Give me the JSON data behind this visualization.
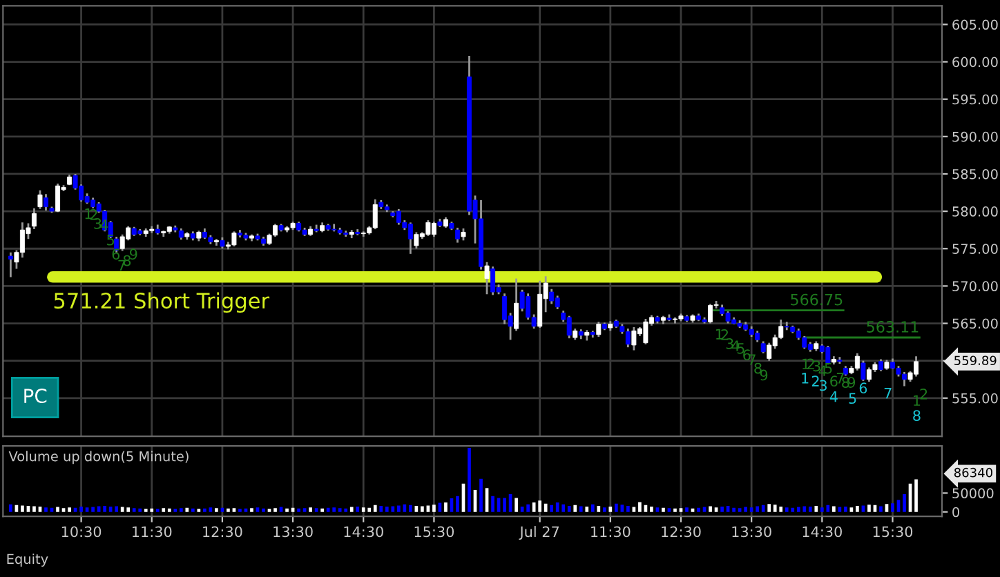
{
  "chart_data": [
    {
      "type": "candlestick",
      "categories": [
        null,
        null,
        null,
        null,
        null,
        null,
        null,
        null,
        null,
        null,
        null,
        null,
        null,
        null,
        null,
        null,
        null,
        null,
        null,
        null,
        null,
        null,
        null,
        null,
        null,
        null,
        null,
        null,
        null,
        null,
        null,
        null,
        null,
        null,
        null,
        null,
        null,
        null,
        null,
        null,
        null,
        null,
        null,
        null,
        null,
        null,
        null,
        null,
        null,
        null,
        null,
        null,
        null,
        null,
        null,
        null,
        null,
        null,
        null,
        null,
        null,
        null,
        null,
        null,
        null,
        null,
        null,
        null,
        null,
        null,
        null,
        null,
        null,
        null,
        null,
        null,
        null,
        null,
        null,
        null,
        null,
        null,
        null,
        null,
        null,
        null,
        null,
        null,
        null,
        null,
        null,
        null,
        null,
        null,
        null,
        null,
        null,
        null,
        null,
        null,
        null,
        null,
        null,
        null,
        null,
        null,
        null,
        null,
        null,
        null,
        null,
        null,
        null,
        null,
        null,
        null,
        null,
        null,
        null,
        null,
        null,
        null,
        null,
        null,
        null,
        null,
        null,
        null,
        null,
        null,
        null,
        null,
        null,
        null,
        null,
        null,
        null,
        null,
        null,
        null,
        null,
        null,
        null,
        null,
        null,
        null,
        null,
        null,
        null,
        null,
        null,
        null,
        null,
        null,
        null
      ],
      "ohlc": [
        [
          574.0,
          574.5,
          571.2,
          573.6
        ],
        [
          573.2,
          574.8,
          572.3,
          574.5
        ],
        [
          574.5,
          578.5,
          573.8,
          577.5
        ],
        [
          577.0,
          578.4,
          576.3,
          577.8
        ],
        [
          578.0,
          580.4,
          577.6,
          579.7
        ],
        [
          580.6,
          582.8,
          580.3,
          582.2
        ],
        [
          581.8,
          582.3,
          580.1,
          580.6
        ],
        [
          580.4,
          580.6,
          579.8,
          580.0
        ],
        [
          580.0,
          583.7,
          579.9,
          583.4
        ],
        [
          582.9,
          583.5,
          582.7,
          583.2
        ],
        [
          583.6,
          584.9,
          583.5,
          584.6
        ],
        [
          584.8,
          585.0,
          582.9,
          583.1
        ],
        [
          583.4,
          583.6,
          581.3,
          581.5
        ],
        [
          582.0,
          582.4,
          581.0,
          581.2
        ],
        [
          581.5,
          581.8,
          580.4,
          580.6
        ],
        [
          581.0,
          581.2,
          579.8,
          580.0
        ],
        [
          580.0,
          580.2,
          577.3,
          577.5
        ],
        [
          578.5,
          578.7,
          576.4,
          576.6
        ],
        [
          576.3,
          576.6,
          574.5,
          574.8
        ],
        [
          575.0,
          576.9,
          574.7,
          576.6
        ],
        [
          576.3,
          578.0,
          576.1,
          577.8
        ],
        [
          577.7,
          577.9,
          576.7,
          576.9
        ],
        [
          577.4,
          577.6,
          576.8,
          577.0
        ],
        [
          577.0,
          577.7,
          576.6,
          577.4
        ],
        [
          577.4,
          578.0,
          577.1,
          577.6
        ],
        [
          577.6,
          578.2,
          576.9,
          577.1
        ],
        [
          577.1,
          577.4,
          576.6,
          577.3
        ],
        [
          577.3,
          578.0,
          577.0,
          577.9
        ],
        [
          577.8,
          578.1,
          577.2,
          577.5
        ],
        [
          577.4,
          577.7,
          576.2,
          576.5
        ],
        [
          576.6,
          577.2,
          576.2,
          577.0
        ],
        [
          577.0,
          577.3,
          576.1,
          576.4
        ],
        [
          576.4,
          577.4,
          576.0,
          577.2
        ],
        [
          577.2,
          577.7,
          576.3,
          576.5
        ],
        [
          576.5,
          576.8,
          575.6,
          575.9
        ],
        [
          575.9,
          576.3,
          575.4,
          576.1
        ],
        [
          576.1,
          576.5,
          575.0,
          575.3
        ],
        [
          575.3,
          575.9,
          574.9,
          575.5
        ],
        [
          575.5,
          577.3,
          575.3,
          577.1
        ],
        [
          577.1,
          577.5,
          576.5,
          576.8
        ],
        [
          576.8,
          577.1,
          576.1,
          576.4
        ],
        [
          576.4,
          576.9,
          576.0,
          576.7
        ],
        [
          576.7,
          577.0,
          576.1,
          576.3
        ],
        [
          576.3,
          576.6,
          575.4,
          575.7
        ],
        [
          575.7,
          577.0,
          575.5,
          576.8
        ],
        [
          576.8,
          578.3,
          576.6,
          578.1
        ],
        [
          578.1,
          578.3,
          577.3,
          577.5
        ],
        [
          577.5,
          578.0,
          577.2,
          577.8
        ],
        [
          577.8,
          578.6,
          577.5,
          578.4
        ],
        [
          578.4,
          578.6,
          577.3,
          577.5
        ],
        [
          577.5,
          577.8,
          576.7,
          576.9
        ],
        [
          576.9,
          578.0,
          576.7,
          577.6
        ],
        [
          577.6,
          578.2,
          577.2,
          577.4
        ],
        [
          577.4,
          578.5,
          577.2,
          578.1
        ],
        [
          578.1,
          578.3,
          577.4,
          577.6
        ],
        [
          577.6,
          578.3,
          577.3,
          577.5
        ],
        [
          577.5,
          577.8,
          576.9,
          577.1
        ],
        [
          577.1,
          577.4,
          576.6,
          576.9
        ],
        [
          576.9,
          577.5,
          576.4,
          577.2
        ],
        [
          577.2,
          577.6,
          576.8,
          577.0
        ],
        [
          577.0,
          577.3,
          576.6,
          577.1
        ],
        [
          577.1,
          578.0,
          576.9,
          577.8
        ],
        [
          577.8,
          581.6,
          577.6,
          580.9
        ],
        [
          581.2,
          581.5,
          580.3,
          580.6
        ],
        [
          580.6,
          580.9,
          579.9,
          580.2
        ],
        [
          579.8,
          580.0,
          579.2,
          579.4
        ],
        [
          580.0,
          580.3,
          578.2,
          578.5
        ],
        [
          578.5,
          578.8,
          577.5,
          577.8
        ],
        [
          578.3,
          578.5,
          574.3,
          576.3
        ],
        [
          575.4,
          577.2,
          575.0,
          576.9
        ],
        [
          576.6,
          577.2,
          576.3,
          577.0
        ],
        [
          576.9,
          578.8,
          576.7,
          578.5
        ],
        [
          576.9,
          578.6,
          576.6,
          578.4
        ],
        [
          578.6,
          579.0,
          577.9,
          578.1
        ],
        [
          578.0,
          579.2,
          577.8,
          578.9
        ],
        [
          578.4,
          578.6,
          577.5,
          577.7
        ],
        [
          577.5,
          577.8,
          575.8,
          576.3
        ],
        [
          576.6,
          577.7,
          576.1,
          577.2
        ],
        [
          598.0,
          600.8,
          579.5,
          580.0
        ],
        [
          581.5,
          582.1,
          575.7,
          579.0
        ],
        [
          579.0,
          581.5,
          572.2,
          572.6
        ],
        [
          571.0,
          573.2,
          568.9,
          572.7
        ],
        [
          572.3,
          572.6,
          568.8,
          569.2
        ],
        [
          569.8,
          570.2,
          568.9,
          569.2
        ],
        [
          568.6,
          569.0,
          564.9,
          565.5
        ],
        [
          566.0,
          566.4,
          562.8,
          564.6
        ],
        [
          564.3,
          571.0,
          564.0,
          567.7
        ],
        [
          569.2,
          569.5,
          566.6,
          567.0
        ],
        [
          568.6,
          569.0,
          565.5,
          565.8
        ],
        [
          565.8,
          566.2,
          564.3,
          564.6
        ],
        [
          564.6,
          570.7,
          564.4,
          568.9
        ],
        [
          568.3,
          571.3,
          566.5,
          570.4
        ],
        [
          569.2,
          569.6,
          567.6,
          568.0
        ],
        [
          568.4,
          568.7,
          566.9,
          567.2
        ],
        [
          566.4,
          566.7,
          565.2,
          565.5
        ],
        [
          565.8,
          566.0,
          563.0,
          563.4
        ],
        [
          563.1,
          564.3,
          562.8,
          564.0
        ],
        [
          563.9,
          564.2,
          562.9,
          563.4
        ],
        [
          563.4,
          564.1,
          562.7,
          563.8
        ],
        [
          563.8,
          564.0,
          563.1,
          563.5
        ],
        [
          563.5,
          565.2,
          563.2,
          564.9
        ],
        [
          564.9,
          565.1,
          564.1,
          564.3
        ],
        [
          564.4,
          565.3,
          564.0,
          564.9
        ],
        [
          565.3,
          565.5,
          564.4,
          564.6
        ],
        [
          564.6,
          564.9,
          563.6,
          563.9
        ],
        [
          563.9,
          564.3,
          561.8,
          562.2
        ],
        [
          562.1,
          564.5,
          561.4,
          564.0
        ],
        [
          563.6,
          564.5,
          563.3,
          564.3
        ],
        [
          562.4,
          565.6,
          562.2,
          565.2
        ],
        [
          565.0,
          566.1,
          564.7,
          565.8
        ],
        [
          565.8,
          566.0,
          565.0,
          565.3
        ],
        [
          565.4,
          566.0,
          564.9,
          565.8
        ],
        [
          565.7,
          566.2,
          565.3,
          565.5
        ],
        [
          565.5,
          565.8,
          565.0,
          565.6
        ],
        [
          565.6,
          566.3,
          565.3,
          566.0
        ],
        [
          565.9,
          566.1,
          565.2,
          565.4
        ],
        [
          565.4,
          566.2,
          565.1,
          566.0
        ],
        [
          566.0,
          566.3,
          565.3,
          565.5
        ],
        [
          565.5,
          565.8,
          565.0,
          565.2
        ],
        [
          565.2,
          567.6,
          565.0,
          567.4
        ],
        [
          567.4,
          568.0,
          567.0,
          567.4
        ],
        [
          567.1,
          567.5,
          566.0,
          566.3
        ],
        [
          566.4,
          566.6,
          565.0,
          565.3
        ],
        [
          565.5,
          565.8,
          564.9,
          565.0
        ],
        [
          565.0,
          565.4,
          564.4,
          564.6
        ],
        [
          564.8,
          565.2,
          564.0,
          564.2
        ],
        [
          564.2,
          564.6,
          563.2,
          563.5
        ],
        [
          563.7,
          564.0,
          562.5,
          562.8
        ],
        [
          562.3,
          562.6,
          561.0,
          561.2
        ],
        [
          560.3,
          562.4,
          560.0,
          562.1
        ],
        [
          562.0,
          563.5,
          561.6,
          563.1
        ],
        [
          563.1,
          565.5,
          562.9,
          564.6
        ],
        [
          564.6,
          565.2,
          564.1,
          564.5
        ],
        [
          564.5,
          564.7,
          563.7,
          563.9
        ],
        [
          564.0,
          564.3,
          562.8,
          563.1
        ],
        [
          563.1,
          563.3,
          561.6,
          561.8
        ],
        [
          562.2,
          562.5,
          561.2,
          561.5
        ],
        [
          561.6,
          562.6,
          561.3,
          562.3
        ],
        [
          562.0,
          562.2,
          561.0,
          561.2
        ],
        [
          561.8,
          562.0,
          559.5,
          559.7
        ],
        [
          559.8,
          560.6,
          559.5,
          560.2
        ],
        [
          560.1,
          560.5,
          559.6,
          559.9
        ],
        [
          559.0,
          559.3,
          558.0,
          558.2
        ],
        [
          558.4,
          559.3,
          558.2,
          559.0
        ],
        [
          559.0,
          561.0,
          558.7,
          560.6
        ],
        [
          559.7,
          560.0,
          557.3,
          557.5
        ],
        [
          557.5,
          559.1,
          557.2,
          558.8
        ],
        [
          558.8,
          559.8,
          558.5,
          559.5
        ],
        [
          559.9,
          560.2,
          558.6,
          558.8
        ],
        [
          559.0,
          560.1,
          558.8,
          559.8
        ],
        [
          559.8,
          560.3,
          558.9,
          559.0
        ],
        [
          559.0,
          559.3,
          557.9,
          558.2
        ],
        [
          558.2,
          558.5,
          556.6,
          557.5
        ],
        [
          557.5,
          558.6,
          557.2,
          558.4
        ],
        [
          558.2,
          560.6,
          557.9,
          559.89
        ]
      ],
      "colors": [
        "#0000ff",
        "#ffffff",
        "#ffffff",
        "#ffffff",
        "#ffffff",
        "#ffffff",
        "#0000ff",
        "#0000ff",
        "#ffffff",
        "#ffffff",
        "#ffffff",
        "#0000ff",
        "#0000ff",
        "#0000ff",
        "#0000ff",
        "#0000ff",
        "#0000ff",
        "#0000ff",
        "#0000ff",
        "#ffffff",
        "#ffffff",
        "#0000ff",
        "#0000ff",
        "#ffffff",
        "#ffffff",
        "#0000ff",
        "#ffffff",
        "#ffffff",
        "#0000ff",
        "#0000ff",
        "#ffffff",
        "#0000ff",
        "#ffffff",
        "#0000ff",
        "#0000ff",
        "#ffffff",
        "#0000ff",
        "#ffffff",
        "#ffffff",
        "#0000ff",
        "#0000ff",
        "#ffffff",
        "#0000ff",
        "#0000ff",
        "#ffffff",
        "#ffffff",
        "#0000ff",
        "#ffffff",
        "#ffffff",
        "#0000ff",
        "#0000ff",
        "#ffffff",
        "#0000ff",
        "#ffffff",
        "#0000ff",
        "#0000ff",
        "#0000ff",
        "#0000ff",
        "#ffffff",
        "#0000ff",
        "#ffffff",
        "#ffffff",
        "#ffffff",
        "#0000ff",
        "#0000ff",
        "#0000ff",
        "#0000ff",
        "#0000ff",
        "#0000ff",
        "#ffffff",
        "#ffffff",
        "#ffffff",
        "#ffffff",
        "#0000ff",
        "#ffffff",
        "#0000ff",
        "#0000ff",
        "#ffffff",
        "#0000ff",
        "#0000ff",
        "#0000ff",
        "#ffffff",
        "#0000ff",
        "#0000ff",
        "#0000ff",
        "#0000ff",
        "#ffffff",
        "#0000ff",
        "#0000ff",
        "#0000ff",
        "#ffffff",
        "#ffffff",
        "#0000ff",
        "#0000ff",
        "#0000ff",
        "#0000ff",
        "#ffffff",
        "#0000ff",
        "#ffffff",
        "#0000ff",
        "#ffffff",
        "#0000ff",
        "#ffffff",
        "#0000ff",
        "#0000ff",
        "#0000ff",
        "#ffffff",
        "#ffffff",
        "#ffffff",
        "#ffffff",
        "#0000ff",
        "#ffffff",
        "#0000ff",
        "#ffffff",
        "#ffffff",
        "#0000ff",
        "#ffffff",
        "#0000ff",
        "#0000ff",
        "#ffffff",
        "#ffffff",
        "#0000ff",
        "#0000ff",
        "#0000ff",
        "#0000ff",
        "#0000ff",
        "#0000ff",
        "#0000ff",
        "#0000ff",
        "#ffffff",
        "#ffffff",
        "#ffffff",
        "#0000ff",
        "#0000ff",
        "#0000ff",
        "#0000ff",
        "#0000ff",
        "#ffffff",
        "#0000ff",
        "#0000ff",
        "#ffffff",
        "#0000ff",
        "#0000ff",
        "#ffffff",
        "#ffffff",
        "#0000ff",
        "#ffffff",
        "#ffffff",
        "#0000ff",
        "#ffffff",
        "#0000ff",
        "#0000ff",
        "#0000ff",
        "#ffffff",
        "#ffffff"
      ],
      "ylim": [
        549.9,
        607.5
      ],
      "yticks": [
        {
          "value": 555,
          "label": "555.00"
        },
        {
          "value": 560,
          "label": null
        },
        {
          "value": 565,
          "label": "565.00"
        },
        {
          "value": 570,
          "label": "570.00"
        },
        {
          "value": 575,
          "label": "575.00"
        },
        {
          "value": 580,
          "label": "580.00"
        },
        {
          "value": 585,
          "label": "585.00"
        },
        {
          "value": 590,
          "label": "590.00"
        },
        {
          "value": 595,
          "label": "595.00"
        },
        {
          "value": 600,
          "label": "600.00"
        },
        {
          "value": 605,
          "label": "605.00"
        }
      ],
      "tick_labels": "y",
      "grid": true,
      "ref_lines": [
        {
          "axis": "y",
          "value": 571.21,
          "label": "571.21 Short Trigger",
          "color": "#d4f01e"
        },
        {
          "axis": "y",
          "value": 566.75,
          "label": "566.75",
          "color": "#1e7a1e"
        },
        {
          "axis": "y",
          "value": 563.11,
          "label": "563.11",
          "color": "#1e7a1e"
        }
      ],
      "annotations": [
        "PC",
        "1",
        "2",
        "3",
        "4",
        "5",
        "6",
        "7",
        "8",
        "9",
        "1",
        "2",
        "3",
        "4",
        "5",
        "6",
        "7",
        "8",
        "9",
        "1",
        "2",
        "3",
        "4",
        "5",
        "6",
        "7",
        "8",
        "9",
        "1",
        "2",
        "3",
        "4",
        "5",
        "6",
        "7",
        "8",
        "1",
        "2",
        "559.89"
      ]
    },
    {
      "type": "bar",
      "categories": [
        null,
        null,
        null,
        null,
        null,
        null,
        null,
        null,
        null,
        null,
        null,
        null,
        "10:30",
        null,
        null,
        null,
        null,
        null,
        null,
        null,
        null,
        null,
        null,
        null,
        "11:30",
        null,
        null,
        null,
        null,
        null,
        null,
        null,
        null,
        null,
        null,
        null,
        "12:30",
        null,
        null,
        null,
        null,
        null,
        null,
        null,
        null,
        null,
        null,
        null,
        "13:30",
        null,
        null,
        null,
        null,
        null,
        null,
        null,
        null,
        null,
        null,
        null,
        "14:30",
        null,
        null,
        null,
        null,
        null,
        null,
        null,
        null,
        null,
        null,
        null,
        "15:30",
        null,
        null,
        null,
        null,
        null,
        null,
        null,
        null,
        null,
        null,
        null,
        null,
        null,
        null,
        null,
        null,
        null,
        "Jul 27",
        null,
        null,
        null,
        null,
        null,
        null,
        null,
        null,
        null,
        null,
        null,
        "11:30",
        null,
        null,
        null,
        null,
        null,
        null,
        null,
        null,
        null,
        null,
        null,
        "12:30",
        null,
        null,
        null,
        null,
        null,
        null,
        null,
        null,
        null,
        null,
        null,
        "13:30",
        null,
        null,
        null,
        null,
        null,
        null,
        null,
        null,
        null,
        null,
        null,
        "14:30",
        null,
        null,
        null,
        null,
        null,
        null,
        null,
        null,
        null,
        null,
        null,
        "15:30",
        null,
        null,
        null,
        null
      ],
      "values": [
        20000,
        18000,
        17000,
        16000,
        15000,
        14000,
        12000,
        11000,
        13000,
        10000,
        12000,
        11000,
        14000,
        12000,
        13000,
        15000,
        16000,
        14000,
        15000,
        13000,
        12000,
        10000,
        9000,
        8000,
        9000,
        8000,
        10000,
        9000,
        8000,
        10000,
        11000,
        9000,
        8000,
        9000,
        12000,
        10000,
        11000,
        9000,
        10000,
        8000,
        9000,
        10000,
        12000,
        9000,
        8000,
        10000,
        13000,
        9000,
        11000,
        9000,
        10000,
        12000,
        10000,
        9000,
        11000,
        12000,
        10000,
        9000,
        13000,
        14000,
        12000,
        11000,
        18000,
        16000,
        14000,
        15000,
        17000,
        20000,
        18000,
        16000,
        15000,
        17000,
        19000,
        24000,
        25000,
        36000,
        42000,
        75000,
        170000,
        58000,
        88000,
        63000,
        42000,
        37000,
        37000,
        47000,
        37000,
        14000,
        20000,
        25000,
        30000,
        22000,
        18000,
        25000,
        20000,
        16000,
        18000,
        15000,
        14000,
        20000,
        16000,
        12000,
        14000,
        22000,
        19000,
        16000,
        13000,
        26000,
        18000,
        14000,
        12000,
        11000,
        10000,
        9000,
        10000,
        12000,
        9000,
        11000,
        13000,
        15000,
        12000,
        14000,
        16000,
        11000,
        10000,
        13000,
        12000,
        15000,
        18000,
        21000,
        19000,
        14000,
        12000,
        11000,
        13000,
        15000,
        14000,
        16000,
        12000,
        18000,
        15000,
        13000,
        14000,
        12000,
        16000,
        17000,
        19000,
        18000,
        15000,
        21000,
        23000,
        32000,
        47000,
        75000,
        86340
      ],
      "colors": [
        "#0000ff",
        "#ffffff",
        "#ffffff",
        "#ffffff",
        "#ffffff",
        "#ffffff",
        "#0000ff",
        "#0000ff",
        "#ffffff",
        "#ffffff",
        "#ffffff",
        "#0000ff",
        "#0000ff",
        "#0000ff",
        "#0000ff",
        "#0000ff",
        "#0000ff",
        "#0000ff",
        "#0000ff",
        "#ffffff",
        "#ffffff",
        "#0000ff",
        "#0000ff",
        "#ffffff",
        "#ffffff",
        "#0000ff",
        "#ffffff",
        "#ffffff",
        "#0000ff",
        "#0000ff",
        "#ffffff",
        "#0000ff",
        "#ffffff",
        "#0000ff",
        "#0000ff",
        "#ffffff",
        "#0000ff",
        "#ffffff",
        "#ffffff",
        "#0000ff",
        "#0000ff",
        "#ffffff",
        "#0000ff",
        "#0000ff",
        "#ffffff",
        "#ffffff",
        "#0000ff",
        "#ffffff",
        "#ffffff",
        "#0000ff",
        "#0000ff",
        "#ffffff",
        "#0000ff",
        "#ffffff",
        "#0000ff",
        "#0000ff",
        "#0000ff",
        "#0000ff",
        "#ffffff",
        "#0000ff",
        "#ffffff",
        "#ffffff",
        "#ffffff",
        "#0000ff",
        "#0000ff",
        "#0000ff",
        "#0000ff",
        "#0000ff",
        "#0000ff",
        "#ffffff",
        "#ffffff",
        "#ffffff",
        "#ffffff",
        "#0000ff",
        "#ffffff",
        "#0000ff",
        "#0000ff",
        "#ffffff",
        "#0000ff",
        "#ffffff",
        "#0000ff",
        "#ffffff",
        "#0000ff",
        "#0000ff",
        "#0000ff",
        "#0000ff",
        "#ffffff",
        "#0000ff",
        "#0000ff",
        "#ffffff",
        "#ffffff",
        "#ffffff",
        "#0000ff",
        "#0000ff",
        "#0000ff",
        "#0000ff",
        "#ffffff",
        "#0000ff",
        "#ffffff",
        "#0000ff",
        "#ffffff",
        "#0000ff",
        "#ffffff",
        "#0000ff",
        "#0000ff",
        "#0000ff",
        "#ffffff",
        "#ffffff",
        "#ffffff",
        "#ffffff",
        "#0000ff",
        "#ffffff",
        "#0000ff",
        "#ffffff",
        "#ffffff",
        "#0000ff",
        "#ffffff",
        "#0000ff",
        "#0000ff",
        "#ffffff",
        "#ffffff",
        "#0000ff",
        "#0000ff",
        "#0000ff",
        "#0000ff",
        "#0000ff",
        "#0000ff",
        "#0000ff",
        "#0000ff",
        "#ffffff",
        "#ffffff",
        "#ffffff",
        "#0000ff",
        "#0000ff",
        "#0000ff",
        "#0000ff",
        "#0000ff",
        "#ffffff",
        "#0000ff",
        "#0000ff",
        "#ffffff",
        "#0000ff",
        "#0000ff",
        "#ffffff",
        "#ffffff",
        "#0000ff",
        "#ffffff",
        "#ffffff",
        "#0000ff",
        "#ffffff",
        "#0000ff",
        "#0000ff",
        "#0000ff",
        "#ffffff",
        "#ffffff"
      ],
      "ylim": [
        -12000,
        175000
      ],
      "yticks": [
        0,
        50000
      ],
      "grid": "x",
      "annotations": [
        "Volume up down(5 Minute)",
        "Equity",
        "86340"
      ]
    }
  ]
}
